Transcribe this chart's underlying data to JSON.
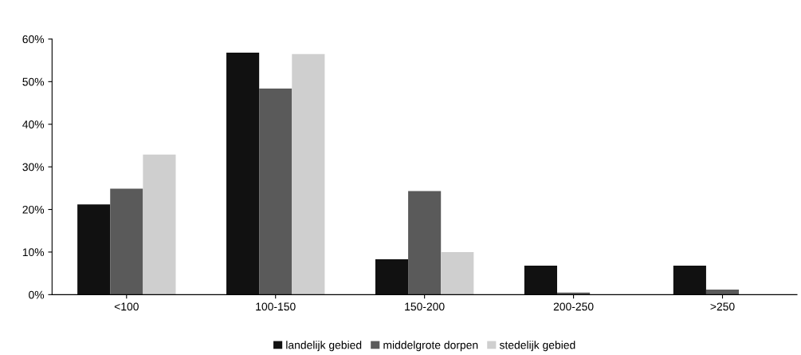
{
  "chart_data": {
    "type": "bar",
    "categories": [
      "<100",
      "100-150",
      "150-200",
      "200-250",
      ">250"
    ],
    "series": [
      {
        "name": "landelijk gebied",
        "color": "#111111",
        "values": [
          21.2,
          56.8,
          8.3,
          6.8,
          6.8
        ]
      },
      {
        "name": "middelgrote dorpen",
        "color": "#5a5a5a",
        "values": [
          24.9,
          48.4,
          24.3,
          0.5,
          1.2
        ]
      },
      {
        "name": "stedelijk gebied",
        "color": "#cfcfcf",
        "values": [
          32.9,
          56.5,
          10.0,
          0,
          0
        ]
      }
    ],
    "ylim": [
      0,
      60
    ],
    "yticks": [
      {
        "value": 0,
        "label": "0%"
      },
      {
        "value": 10,
        "label": "10%"
      },
      {
        "value": 20,
        "label": "20%"
      },
      {
        "value": 30,
        "label": "30%"
      },
      {
        "value": 40,
        "label": "40%"
      },
      {
        "value": 50,
        "label": "50%"
      },
      {
        "value": 60,
        "label": "60%"
      }
    ],
    "grid": false,
    "legend": "bottom"
  }
}
